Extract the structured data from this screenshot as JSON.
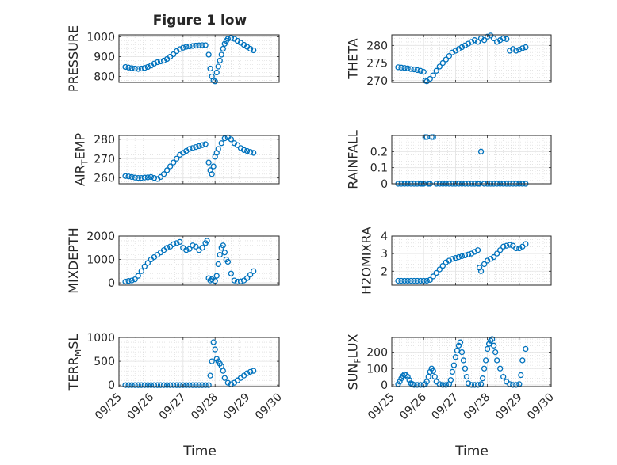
{
  "figure_title": "Figure 1 low",
  "x_axis_label": "Time",
  "x_tick_labels": [
    "09/25",
    "09/26",
    "09/27",
    "09/28",
    "09/29",
    "09/30"
  ],
  "marker_color": "#0072BD",
  "chart_data": [
    {
      "type": "scatter",
      "ylabel": "PRESSURE",
      "ylim": [
        770,
        1010
      ],
      "yticks": [
        800,
        900,
        1000
      ],
      "xlim": [
        "09/25",
        "09/30"
      ],
      "grid": true,
      "x": [
        25.2,
        25.3,
        25.4,
        25.5,
        25.6,
        25.7,
        25.8,
        25.9,
        26.0,
        26.1,
        26.2,
        26.3,
        26.4,
        26.5,
        26.6,
        26.7,
        26.8,
        26.9,
        27.0,
        27.1,
        27.2,
        27.3,
        27.4,
        27.5,
        27.6,
        27.7,
        27.8,
        27.85,
        27.9,
        27.95,
        28.0,
        28.05,
        28.1,
        28.15,
        28.2,
        28.25,
        28.3,
        28.35,
        28.4,
        28.5,
        28.6,
        28.7,
        28.8,
        28.9,
        29.0,
        29.1,
        29.2
      ],
      "y": [
        848,
        845,
        842,
        840,
        838,
        840,
        843,
        848,
        855,
        865,
        872,
        876,
        880,
        888,
        900,
        912,
        928,
        938,
        945,
        950,
        952,
        954,
        956,
        957,
        958,
        958,
        910,
        840,
        800,
        780,
        775,
        820,
        850,
        880,
        910,
        940,
        965,
        980,
        990,
        995,
        990,
        980,
        970,
        960,
        950,
        940,
        932
      ]
    },
    {
      "type": "scatter",
      "ylabel": "THETA",
      "ylim": [
        269.5,
        283
      ],
      "yticks": [
        270,
        275,
        280
      ],
      "xlim": [
        "09/25",
        "09/30"
      ],
      "grid": true,
      "x": [
        25.2,
        25.3,
        25.4,
        25.5,
        25.6,
        25.7,
        25.8,
        25.9,
        26.0,
        26.05,
        26.1,
        26.2,
        26.3,
        26.4,
        26.5,
        26.6,
        26.7,
        26.8,
        26.9,
        27.0,
        27.1,
        27.2,
        27.3,
        27.4,
        27.5,
        27.6,
        27.7,
        27.8,
        27.9,
        28.0,
        28.1,
        28.2,
        28.3,
        28.4,
        28.5,
        28.6,
        28.7,
        28.8,
        28.9,
        29.0,
        29.1,
        29.2
      ],
      "y": [
        273.8,
        273.7,
        273.6,
        273.5,
        273.3,
        273.2,
        273.0,
        272.8,
        272.5,
        270.0,
        269.8,
        270.5,
        271.5,
        272.8,
        274.0,
        275.0,
        276.0,
        277.0,
        278.0,
        278.5,
        279.0,
        279.5,
        280.0,
        280.5,
        281.0,
        281.5,
        281.0,
        282.0,
        281.5,
        282.5,
        282.8,
        282.0,
        281.0,
        281.5,
        282.0,
        281.8,
        278.5,
        279.0,
        278.5,
        278.8,
        279.2,
        279.5
      ]
    },
    {
      "type": "scatter",
      "ylabel": "AIR_TEMP",
      "ylim": [
        257,
        282
      ],
      "yticks": [
        260,
        270,
        280
      ],
      "xlim": [
        "09/25",
        "09/30"
      ],
      "grid": true,
      "x": [
        25.2,
        25.3,
        25.4,
        25.5,
        25.6,
        25.7,
        25.8,
        25.9,
        26.0,
        26.1,
        26.2,
        26.3,
        26.4,
        26.5,
        26.6,
        26.7,
        26.8,
        26.9,
        27.0,
        27.1,
        27.2,
        27.3,
        27.4,
        27.5,
        27.6,
        27.7,
        27.8,
        27.85,
        27.9,
        27.95,
        28.0,
        28.05,
        28.1,
        28.2,
        28.3,
        28.4,
        28.5,
        28.6,
        28.7,
        28.8,
        28.9,
        29.0,
        29.1,
        29.2
      ],
      "y": [
        261.0,
        260.8,
        260.5,
        260.2,
        260.0,
        260.0,
        260.2,
        260.3,
        260.5,
        260.0,
        259.5,
        260.5,
        262.0,
        264.0,
        266.0,
        268.0,
        270.0,
        272.0,
        273.0,
        274.0,
        275.0,
        275.5,
        276.0,
        276.5,
        277.0,
        277.5,
        268.0,
        264.0,
        262.0,
        266.0,
        271.0,
        273.0,
        275.0,
        278.0,
        280.5,
        281.0,
        280.0,
        278.0,
        277.0,
        275.5,
        274.5,
        274.0,
        273.5,
        273.0
      ]
    },
    {
      "type": "scatter",
      "ylabel": "RAINFALL",
      "ylim": [
        0,
        0.3
      ],
      "yticks": [
        0,
        0.1,
        0.2
      ],
      "xlim": [
        "09/25",
        "09/30"
      ],
      "grid": true,
      "x": [
        25.2,
        25.3,
        25.4,
        25.5,
        25.6,
        25.7,
        25.8,
        25.9,
        25.95,
        26.0,
        26.05,
        26.1,
        26.15,
        26.2,
        26.25,
        26.3,
        26.4,
        26.5,
        26.6,
        26.7,
        26.8,
        26.9,
        27.0,
        27.1,
        27.2,
        27.3,
        27.4,
        27.5,
        27.6,
        27.7,
        27.75,
        27.8,
        27.9,
        28.0,
        28.1,
        28.2,
        28.3,
        28.4,
        28.5,
        28.6,
        28.7,
        28.8,
        28.9,
        29.0,
        29.1,
        29.2
      ],
      "y": [
        0,
        0,
        0,
        0,
        0,
        0,
        0,
        0,
        0,
        0,
        0.29,
        0.29,
        0,
        0,
        0.29,
        0.29,
        0,
        0,
        0,
        0,
        0,
        0,
        0,
        0,
        0,
        0,
        0,
        0,
        0,
        0,
        0,
        0.2,
        0,
        0,
        0,
        0,
        0,
        0,
        0,
        0,
        0,
        0,
        0,
        0,
        0,
        0
      ]
    },
    {
      "type": "scatter",
      "ylabel": "MIXDEPTH",
      "ylim": [
        -100,
        2000
      ],
      "yticks": [
        0,
        1000,
        2000
      ],
      "xlim": [
        "09/25",
        "09/30"
      ],
      "grid": true,
      "x": [
        25.2,
        25.3,
        25.4,
        25.5,
        25.6,
        25.7,
        25.8,
        25.9,
        26.0,
        26.1,
        26.2,
        26.3,
        26.4,
        26.5,
        26.6,
        26.7,
        26.8,
        26.9,
        27.0,
        27.1,
        27.2,
        27.3,
        27.4,
        27.5,
        27.6,
        27.7,
        27.75,
        27.8,
        27.85,
        27.9,
        28.0,
        28.05,
        28.1,
        28.15,
        28.2,
        28.25,
        28.3,
        28.35,
        28.4,
        28.5,
        28.6,
        28.7,
        28.8,
        28.9,
        29.0,
        29.1,
        29.2
      ],
      "y": [
        50,
        80,
        100,
        150,
        300,
        500,
        700,
        850,
        1000,
        1100,
        1200,
        1300,
        1400,
        1500,
        1550,
        1650,
        1700,
        1750,
        1500,
        1400,
        1450,
        1600,
        1550,
        1400,
        1500,
        1700,
        1800,
        200,
        100,
        150,
        80,
        300,
        800,
        1200,
        1500,
        1600,
        1300,
        1000,
        900,
        400,
        100,
        50,
        60,
        100,
        200,
        350,
        500
      ]
    },
    {
      "type": "scatter",
      "ylabel": "H2OMIXRA",
      "ylim": [
        1.2,
        4
      ],
      "yticks": [
        2,
        3,
        4
      ],
      "xlim": [
        "09/25",
        "09/30"
      ],
      "grid": true,
      "x": [
        25.2,
        25.3,
        25.4,
        25.5,
        25.6,
        25.7,
        25.8,
        25.9,
        26.0,
        26.1,
        26.2,
        26.3,
        26.4,
        26.5,
        26.6,
        26.7,
        26.8,
        26.9,
        27.0,
        27.1,
        27.2,
        27.3,
        27.4,
        27.5,
        27.6,
        27.7,
        27.75,
        27.8,
        27.9,
        28.0,
        28.1,
        28.2,
        28.3,
        28.4,
        28.5,
        28.6,
        28.7,
        28.8,
        28.9,
        29.0,
        29.1,
        29.2
      ],
      "y": [
        1.45,
        1.45,
        1.45,
        1.45,
        1.45,
        1.45,
        1.45,
        1.45,
        1.45,
        1.45,
        1.5,
        1.7,
        1.9,
        2.1,
        2.3,
        2.5,
        2.6,
        2.7,
        2.75,
        2.8,
        2.85,
        2.9,
        2.95,
        3.0,
        3.1,
        3.2,
        2.2,
        2.0,
        2.4,
        2.6,
        2.7,
        2.8,
        3.0,
        3.2,
        3.4,
        3.45,
        3.5,
        3.45,
        3.3,
        3.3,
        3.4,
        3.55
      ]
    },
    {
      "type": "scatter",
      "ylabel": "TERR_MSL",
      "ylim": [
        -30,
        1000
      ],
      "yticks": [
        0,
        500,
        1000
      ],
      "xlim": [
        "09/25",
        "09/30"
      ],
      "grid": true,
      "x": [
        25.2,
        25.3,
        25.4,
        25.5,
        25.6,
        25.7,
        25.8,
        25.9,
        26.0,
        26.1,
        26.2,
        26.3,
        26.4,
        26.5,
        26.6,
        26.7,
        26.8,
        26.9,
        27.0,
        27.1,
        27.2,
        27.3,
        27.4,
        27.5,
        27.6,
        27.7,
        27.8,
        27.85,
        27.9,
        27.95,
        28.0,
        28.05,
        28.1,
        28.15,
        28.2,
        28.25,
        28.3,
        28.4,
        28.5,
        28.6,
        28.7,
        28.8,
        28.9,
        29.0,
        29.1,
        29.2
      ],
      "y": [
        0,
        0,
        0,
        0,
        0,
        0,
        0,
        0,
        0,
        0,
        0,
        0,
        0,
        0,
        0,
        0,
        0,
        0,
        0,
        0,
        0,
        0,
        0,
        0,
        0,
        0,
        0,
        200,
        500,
        900,
        750,
        550,
        500,
        450,
        400,
        300,
        150,
        50,
        20,
        50,
        100,
        150,
        200,
        250,
        280,
        300
      ]
    },
    {
      "type": "scatter",
      "ylabel": "SUN_FLUX",
      "ylim": [
        -10,
        290
      ],
      "yticks": [
        0,
        100,
        200
      ],
      "xlim": [
        "09/25",
        "09/30"
      ],
      "grid": true,
      "x": [
        25.2,
        25.25,
        25.3,
        25.35,
        25.4,
        25.45,
        25.5,
        25.55,
        25.6,
        25.65,
        25.7,
        25.8,
        25.9,
        26.0,
        26.05,
        26.1,
        26.15,
        26.2,
        26.25,
        26.3,
        26.35,
        26.4,
        26.5,
        26.6,
        26.7,
        26.8,
        26.85,
        26.9,
        26.95,
        27.0,
        27.05,
        27.1,
        27.15,
        27.2,
        27.25,
        27.3,
        27.35,
        27.4,
        27.5,
        27.6,
        27.7,
        27.8,
        27.85,
        27.9,
        27.95,
        28.0,
        28.05,
        28.1,
        28.15,
        28.2,
        28.25,
        28.3,
        28.4,
        28.5,
        28.6,
        28.7,
        28.8,
        28.9,
        29.0,
        29.05,
        29.1,
        29.2
      ],
      "y": [
        5,
        20,
        40,
        55,
        65,
        60,
        50,
        30,
        10,
        5,
        0,
        0,
        0,
        0,
        5,
        20,
        50,
        80,
        100,
        85,
        50,
        20,
        5,
        0,
        0,
        5,
        30,
        80,
        120,
        170,
        210,
        240,
        260,
        200,
        150,
        100,
        50,
        10,
        0,
        0,
        0,
        5,
        40,
        100,
        150,
        220,
        250,
        270,
        280,
        240,
        200,
        150,
        100,
        50,
        20,
        5,
        0,
        0,
        5,
        60,
        150,
        220
      ]
    }
  ]
}
